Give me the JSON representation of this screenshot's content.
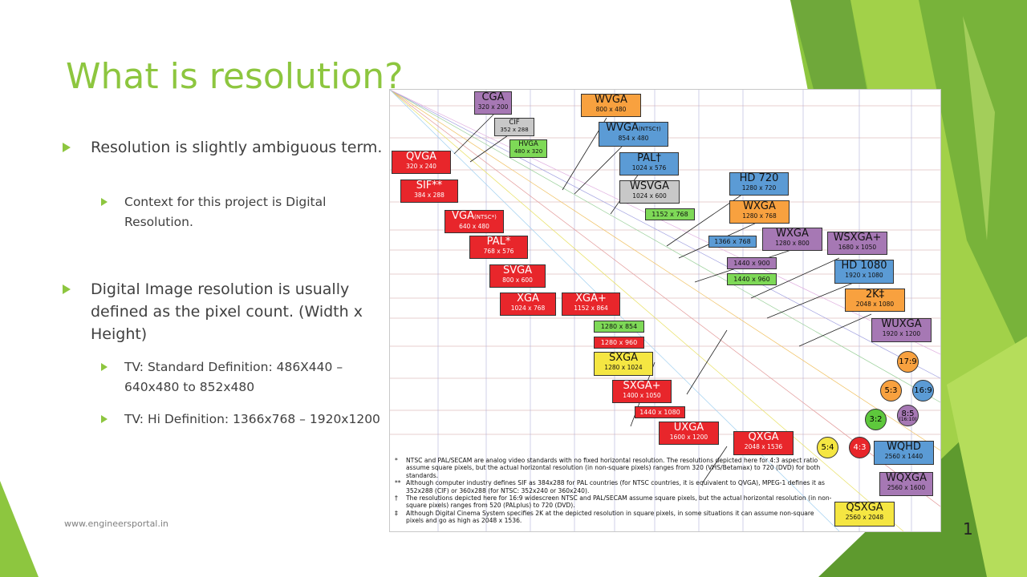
{
  "slide": {
    "title": "What is resolution?",
    "bullets": [
      {
        "text": "Resolution is slightly ambiguous term.",
        "sub": [
          {
            "text": "Context for this project is Digital Resolution."
          }
        ]
      },
      {
        "text": "Digital Image resolution is usually defined as the pixel count. (Width x Height)",
        "sub": [
          {
            "text": "TV: Standard Definition: 486X440 – 640x480 to 852x480"
          },
          {
            "text": "TV: Hi Definition: 1366x768 – 1920x1200"
          }
        ]
      }
    ],
    "footer": "www.engineersportal.in",
    "page_number": "1"
  },
  "figure": {
    "standards": [
      {
        "name": "CGA",
        "size": "320 x 200"
      },
      {
        "name": "CIF",
        "size": "352 x 288"
      },
      {
        "name": "HVGA",
        "size": "480 x 320"
      },
      {
        "name": "QVGA",
        "size": "320 x 240"
      },
      {
        "name": "SIF**",
        "size": "384 x 288"
      },
      {
        "name": "VGA",
        "qualifier": "(NTSC*)",
        "size": "640 x 480"
      },
      {
        "name": "PAL*",
        "size": "768 x 576"
      },
      {
        "name": "SVGA",
        "size": "800 x 600"
      },
      {
        "name": "XGA",
        "size": "1024 x 768"
      },
      {
        "name": "XGA+",
        "size": "1152 x 864"
      },
      {
        "name": "WVGA",
        "size": "800 x 480"
      },
      {
        "name": "WVGA",
        "qualifier": "(NTSC†)",
        "size": "854 x 480"
      },
      {
        "name": "PAL†",
        "size": "1024 x 576"
      },
      {
        "name": "WSVGA",
        "size": "1024 x 600"
      },
      {
        "name": "",
        "size": "1152 x 768"
      },
      {
        "name": "HD 720",
        "size": "1280 x 720"
      },
      {
        "name": "WXGA",
        "size": "1280 x 768"
      },
      {
        "name": "",
        "size": "1366 x 768"
      },
      {
        "name": "WXGA",
        "size": "1280 x 800"
      },
      {
        "name": "WSXGA+",
        "size": "1680 x 1050"
      },
      {
        "name": "",
        "size": "1440 x 900"
      },
      {
        "name": "",
        "size": "1440 x 960"
      },
      {
        "name": "HD 1080",
        "size": "1920 x 1080"
      },
      {
        "name": "2K‡",
        "size": "2048 x 1080"
      },
      {
        "name": "WUXGA",
        "size": "1920 x 1200"
      },
      {
        "name": "",
        "size": "1280 x 854"
      },
      {
        "name": "",
        "size": "1280 x 960"
      },
      {
        "name": "SXGA",
        "size": "1280 x 1024"
      },
      {
        "name": "SXGA+",
        "size": "1400 x 1050"
      },
      {
        "name": "",
        "size": "1440 x 1080"
      },
      {
        "name": "UXGA",
        "size": "1600 x 1200"
      },
      {
        "name": "QXGA",
        "size": "2048 x 1536"
      },
      {
        "name": "WQHD",
        "size": "2560 x 1440"
      },
      {
        "name": "WQXGA",
        "size": "2560 x 1600"
      },
      {
        "name": "QSXGA",
        "size": "2560 x 2048"
      }
    ],
    "ratios": [
      {
        "label": "17:9"
      },
      {
        "label": "5:3"
      },
      {
        "label": "16:9"
      },
      {
        "label": "3:2"
      },
      {
        "label": "8:5",
        "sub": "(16:10)"
      },
      {
        "label": "5:4"
      },
      {
        "label": "4:3"
      }
    ],
    "notes": [
      {
        "mark": "*",
        "text": "NTSC and PAL/SECAM are analog video standards with no fixed horizontal resolution. The resolutions depicted here for 4:3 aspect ratio assume square pixels, but the actual horizontal resolution (in non-square pixels) ranges from 320 (VHS/Betamax) to 720 (DVD) for both standards."
      },
      {
        "mark": "**",
        "text": "Although computer industry defines SIF as 384x288 for PAL countries (for NTSC countries, it is equivalent to QVGA), MPEG-1 defines it as 352x288 (CIF) or 360x288 (for NTSC: 352x240 or 360x240)."
      },
      {
        "mark": "†",
        "text": "The resolutions depicted here for 16:9 widescreen NTSC and PAL/SECAM assume square pixels, but the actual horizontal resolution (in non-square pixels) ranges from 520 (PALplus) to 720 (DVD)."
      },
      {
        "mark": "‡",
        "text": "Although Digital Cinema System specifies 2K at the depicted resolution in square pixels, in some situations it can assume non-square pixels and go as high as 2048 x 1536."
      }
    ]
  },
  "colors": {
    "accent": "#8dc63f",
    "text": "#404040"
  }
}
